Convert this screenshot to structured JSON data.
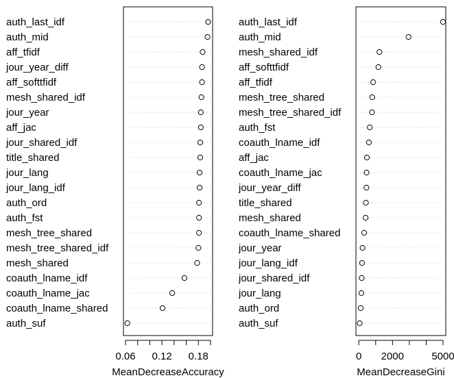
{
  "chart_data": [
    {
      "type": "scatter",
      "title": "",
      "xlabel": "MeanDecreaseAccuracy",
      "xlim": [
        0.06,
        0.2
      ],
      "xticks": [
        "0.06",
        "0.12",
        "0.18"
      ],
      "xtick_values": [
        0.06,
        0.12,
        0.18
      ],
      "grid": "dotted horizontal guide lines",
      "categories": [
        "auth_last_idf",
        "auth_mid",
        "aff_tfidf",
        "jour_year_diff",
        "aff_softtfidf",
        "mesh_shared_idf",
        "jour_year",
        "aff_jac",
        "jour_shared_idf",
        "title_shared",
        "jour_lang",
        "jour_lang_idf",
        "auth_ord",
        "auth_fst",
        "mesh_tree_shared",
        "mesh_tree_shared_idf",
        "mesh_shared",
        "coauth_lname_idf",
        "coauth_lname_jac",
        "coauth_lname_shared",
        "auth_suf"
      ],
      "values": [
        0.196,
        0.195,
        0.187,
        0.186,
        0.186,
        0.185,
        0.184,
        0.184,
        0.183,
        0.183,
        0.182,
        0.182,
        0.181,
        0.181,
        0.181,
        0.18,
        0.178,
        0.157,
        0.137,
        0.121,
        0.063
      ]
    },
    {
      "type": "scatter",
      "title": "",
      "xlabel": "MeanDecreaseGini",
      "xlim": [
        -50,
        5000
      ],
      "xticks": [
        "0",
        "2000",
        "5000"
      ],
      "xtick_values": [
        0,
        2000,
        5000
      ],
      "grid": "dotted horizontal guide lines",
      "categories": [
        "auth_last_idf",
        "auth_mid",
        "mesh_shared_idf",
        "aff_softtfidf",
        "aff_tfidf",
        "mesh_tree_shared",
        "mesh_tree_shared_idf",
        "auth_fst",
        "coauth_lname_idf",
        "aff_jac",
        "coauth_lname_jac",
        "jour_year_diff",
        "title_shared",
        "mesh_shared",
        "coauth_lname_shared",
        "jour_year",
        "jour_lang_idf",
        "jour_shared_idf",
        "jour_lang",
        "auth_ord",
        "auth_suf"
      ],
      "values": [
        5000,
        2950,
        1220,
        1160,
        850,
        800,
        780,
        650,
        600,
        480,
        460,
        450,
        420,
        400,
        320,
        220,
        190,
        170,
        150,
        110,
        50
      ]
    }
  ]
}
